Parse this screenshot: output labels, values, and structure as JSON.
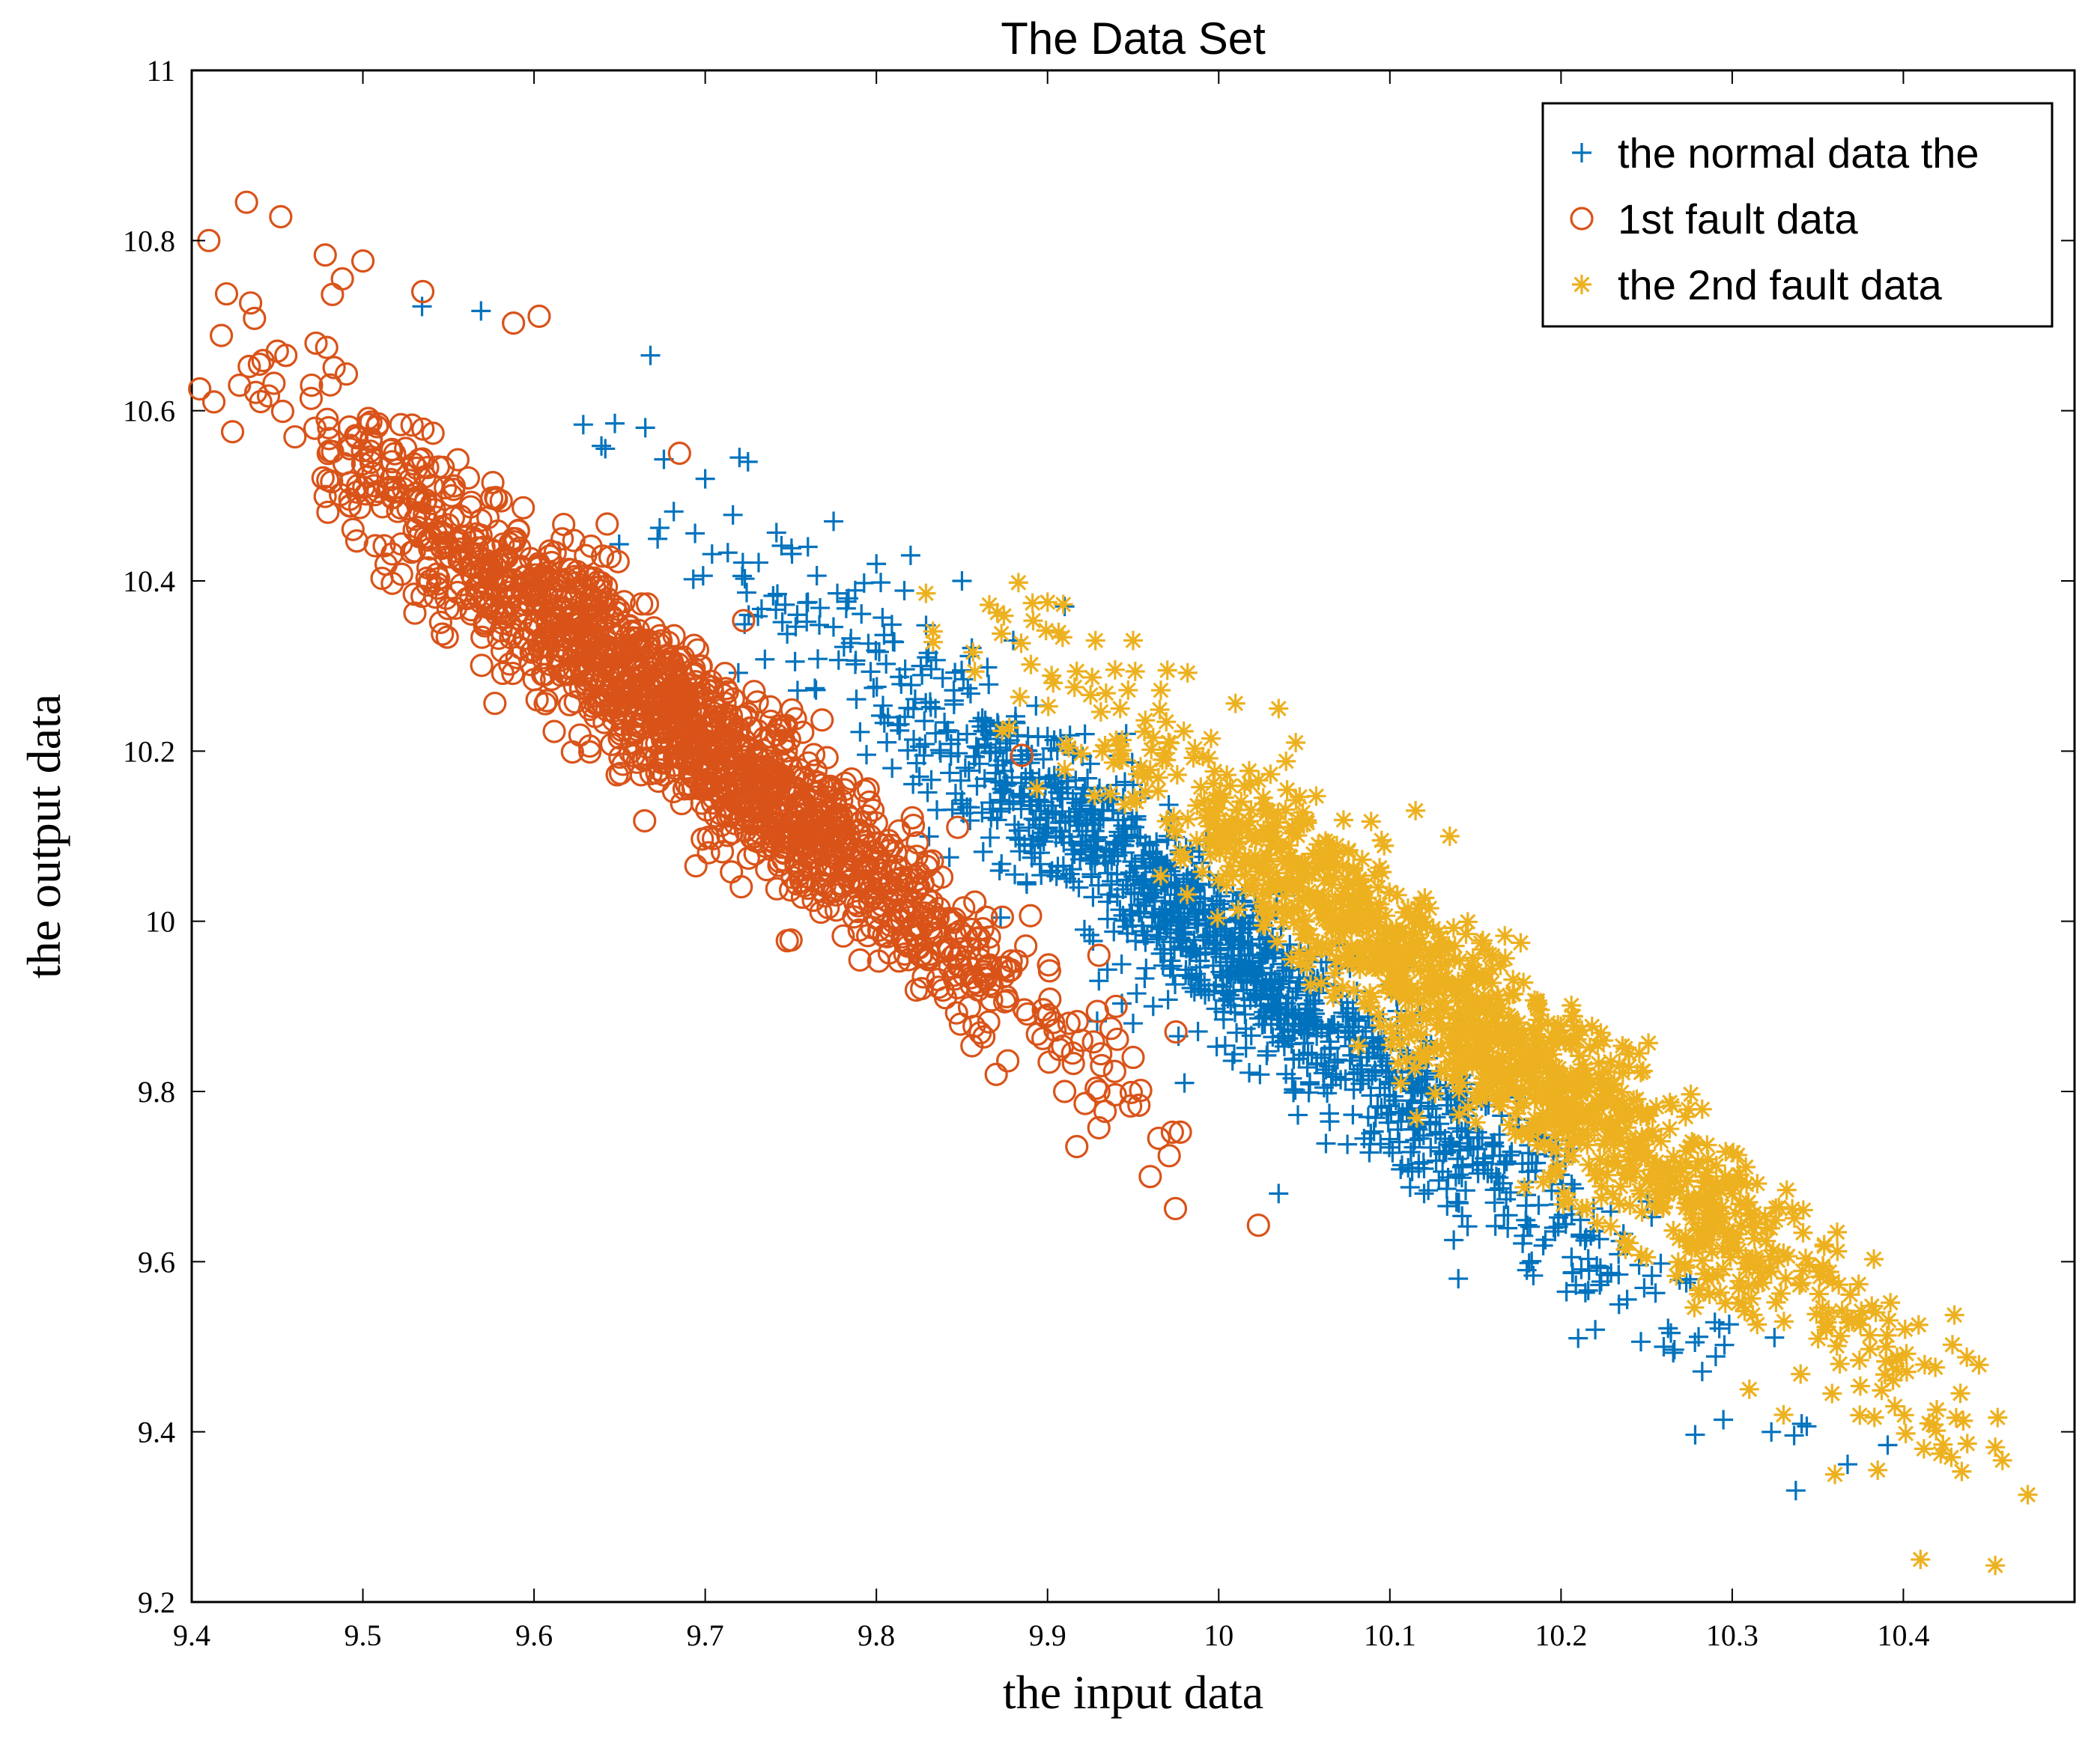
{
  "chart_data": {
    "type": "scatter",
    "title": "The Data Set",
    "xlabel": "the input data",
    "ylabel": "the output data",
    "xlim": [
      9.4,
      10.5
    ],
    "ylim": [
      9.2,
      11.0
    ],
    "xticks": [
      9.4,
      9.5,
      9.6,
      9.7,
      9.8,
      9.9,
      10.0,
      10.1,
      10.2,
      10.3,
      10.4
    ],
    "xtick_labels": [
      "9.4",
      "9.5",
      "9.6",
      "9.7",
      "9.8",
      "9.9",
      "10",
      "10.1",
      "10.2",
      "10.3",
      "10.4"
    ],
    "yticks": [
      9.2,
      9.4,
      9.6,
      9.8,
      10.0,
      10.2,
      10.4,
      10.6,
      10.8,
      11.0
    ],
    "ytick_labels": [
      "9.2",
      "9.4",
      "9.6",
      "9.8",
      "10",
      "10.2",
      "10.4",
      "10.6",
      "10.8",
      "11"
    ],
    "legend_position": "top-right",
    "grid": false,
    "series": [
      {
        "name": "the normal data the",
        "marker": "plus",
        "color": "#0072BD",
        "cluster": {
          "x_range": [
            9.74,
            10.26
          ],
          "slope": -1.6,
          "intercept_at_x10": 9.97,
          "spread_y": 0.05,
          "count": 1400
        },
        "points": [
          [
            9.668,
            10.665
          ],
          [
            9.665,
            10.58
          ],
          [
            9.72,
            10.545
          ],
          [
            9.725,
            10.54
          ],
          [
            9.7,
            10.52
          ],
          [
            9.775,
            10.47
          ],
          [
            9.76,
            10.44
          ],
          [
            9.8,
            10.42
          ],
          [
            9.82,
            10.43
          ],
          [
            9.85,
            10.4
          ],
          [
            9.91,
            10.37
          ],
          [
            9.88,
            10.33
          ],
          [
            9.98,
            9.81
          ],
          [
            10.035,
            9.68
          ],
          [
            10.12,
            9.68
          ],
          [
            10.21,
            9.51
          ],
          [
            10.22,
            9.52
          ],
          [
            10.26,
            9.5
          ],
          [
            10.14,
            9.58
          ],
          [
            10.18,
            9.59
          ],
          [
            9.95,
            9.88
          ],
          [
            9.93,
            9.93
          ]
        ]
      },
      {
        "name": "1st fault data",
        "marker": "circle",
        "color": "#D95319",
        "cluster": {
          "x_range": [
            9.47,
            9.9
          ],
          "slope": -1.6,
          "intercept_at_x10": 9.73,
          "spread_y": 0.05,
          "count": 1600
        },
        "points": [
          [
            9.41,
            10.8
          ],
          [
            9.432,
            10.845
          ],
          [
            9.452,
            10.828
          ],
          [
            9.478,
            10.783
          ],
          [
            9.5,
            10.776
          ],
          [
            9.488,
            10.755
          ],
          [
            9.535,
            10.74
          ],
          [
            9.588,
            10.703
          ],
          [
            9.603,
            10.711
          ],
          [
            9.45,
            10.67
          ],
          [
            9.455,
            10.665
          ],
          [
            9.47,
            10.63
          ],
          [
            9.48,
            10.58
          ],
          [
            9.53,
            10.46
          ],
          [
            9.54,
            10.45
          ],
          [
            9.615,
            10.4
          ],
          [
            9.59,
            10.31
          ],
          [
            9.605,
            10.29
          ],
          [
            9.685,
            10.55
          ],
          [
            9.885,
            10.195
          ],
          [
            9.96,
            9.7
          ],
          [
            9.91,
            9.8
          ],
          [
            9.93,
            9.8
          ],
          [
            9.87,
            9.82
          ],
          [
            9.95,
            9.84
          ],
          [
            9.975,
            9.87
          ],
          [
            9.94,
            9.9
          ],
          [
            9.92,
            9.86
          ],
          [
            9.93,
            9.96
          ]
        ]
      },
      {
        "name": "the 2nd fault data",
        "marker": "asterisk",
        "color": "#EDB120",
        "cluster": {
          "x_range": [
            9.91,
            10.4
          ],
          "slope": -1.6,
          "intercept_at_x10": 10.12,
          "spread_y": 0.05,
          "count": 1400
        },
        "points": [
          [
            9.883,
            10.398
          ],
          [
            9.9,
            10.375
          ],
          [
            9.928,
            10.33
          ],
          [
            9.95,
            10.33
          ],
          [
            9.97,
            10.295
          ],
          [
            10.035,
            10.25
          ],
          [
            10.045,
            10.21
          ],
          [
            10.135,
            10.1
          ],
          [
            10.115,
            10.13
          ],
          [
            10.27,
            9.705
          ],
          [
            10.3,
            9.68
          ],
          [
            10.33,
            9.61
          ],
          [
            10.355,
            9.52
          ],
          [
            10.37,
            9.53
          ],
          [
            10.39,
            9.5
          ],
          [
            10.395,
            9.43
          ],
          [
            10.412,
            9.38
          ],
          [
            10.415,
            9.41
          ],
          [
            10.428,
            9.37
          ],
          [
            10.435,
            9.413
          ],
          [
            10.41,
            9.25
          ],
          [
            10.36,
            9.35
          ],
          [
            10.385,
            9.355
          ],
          [
            10.33,
            9.42
          ],
          [
            10.31,
            9.45
          ]
        ]
      }
    ]
  }
}
